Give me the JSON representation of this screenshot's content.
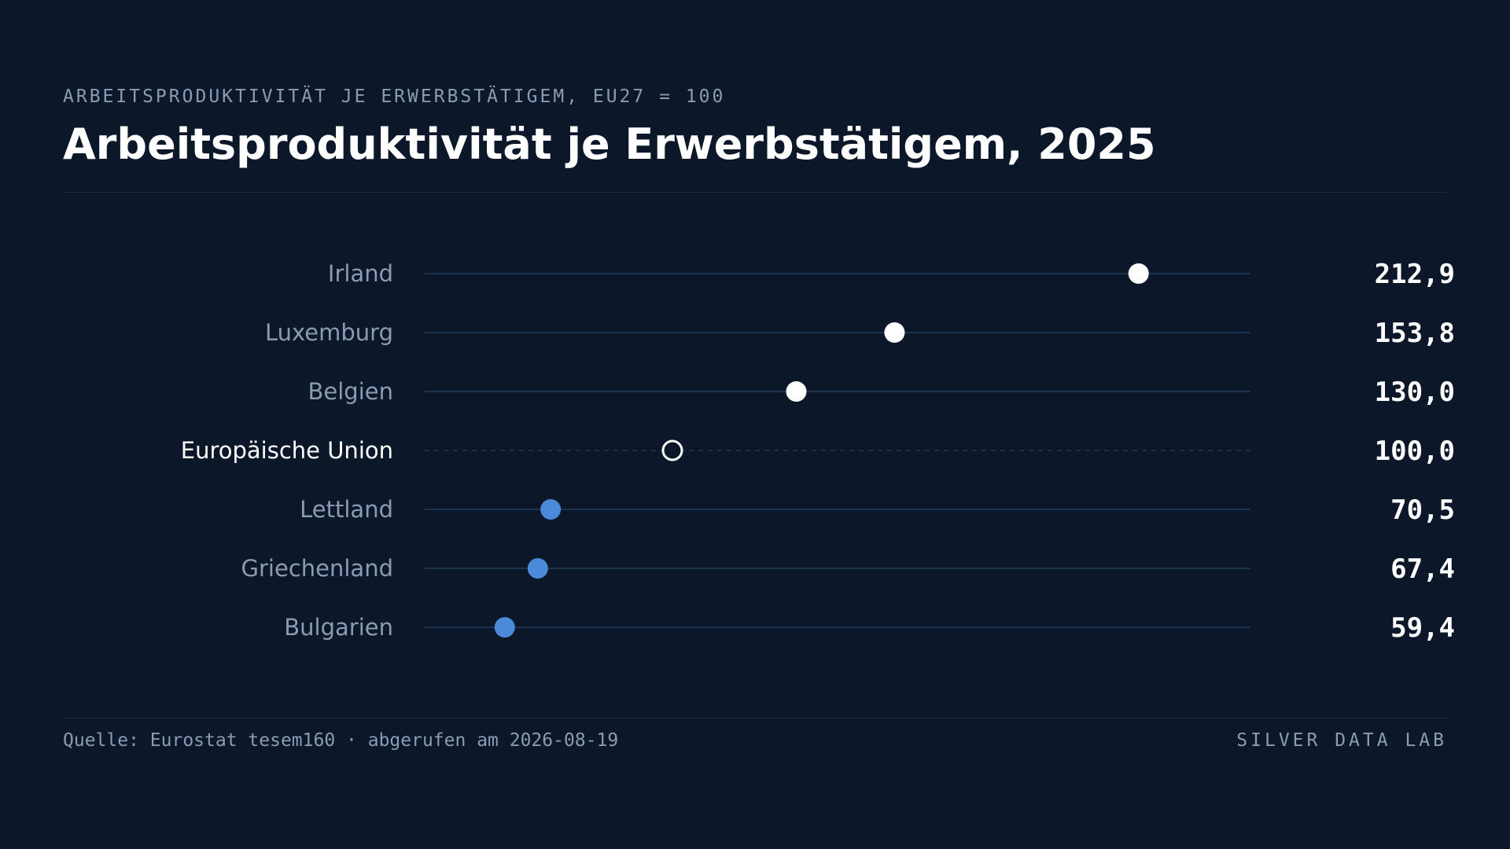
{
  "header": {
    "kicker": "ARBEITSPRODUKTIVITÄT JE ERWERBSTÄTIGEM, EU27 = 100",
    "title": "Arbeitsproduktivität je Erwerbstätigem, 2025"
  },
  "footer": {
    "source": "Quelle: Eurostat tesem160 · abgerufen am 2026-08-19",
    "brand": "SILVER DATA LAB"
  },
  "colors": {
    "background": "#0c1829",
    "above_reference": "#ffffff",
    "below_reference": "#4a8ad8",
    "track": "#1e3350",
    "label": "#8b9bb4",
    "label_highlight": "#ffffff",
    "value": "#ffffff"
  },
  "chart_data": {
    "type": "dot",
    "title": "Arbeitsproduktivität je Erwerbstätigem, 2025",
    "reference_value": 100,
    "reference_category": "Europäische Union",
    "xlim": [
      40,
      240
    ],
    "grid": false,
    "categories": [
      "Irland",
      "Luxemburg",
      "Belgien",
      "Europäische Union",
      "Lettland",
      "Griechenland",
      "Bulgarien"
    ],
    "values": [
      212.9,
      153.8,
      130.0,
      100.0,
      70.5,
      67.4,
      59.4
    ],
    "value_labels": [
      "212,9",
      "153,8",
      "130,0",
      "100,0",
      "70,5",
      "67,4",
      "59,4"
    ]
  }
}
